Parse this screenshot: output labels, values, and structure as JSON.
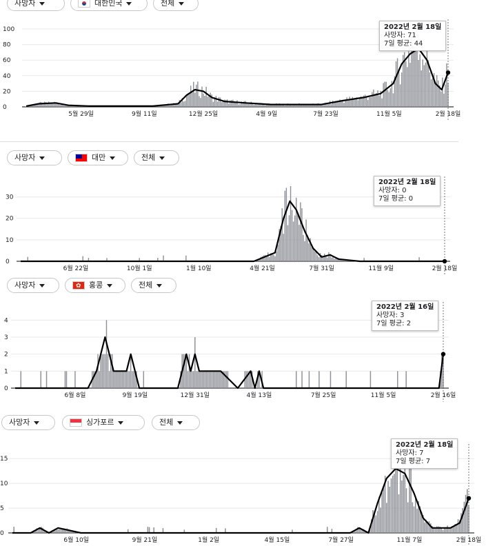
{
  "colors": {
    "bar": "#8e9097",
    "line": "#000000",
    "grid": "#e8e8e8",
    "marker": "#000000"
  },
  "panels": [
    {
      "controls": {
        "metric": "사망자",
        "country": "대한민국",
        "scope": "전체",
        "flag": "kr"
      },
      "tooltip": {
        "date": "2022년 2월 18일",
        "value_label": "사망자: 71",
        "avg_label": "7일 평균: 44"
      }
    },
    {
      "controls": {
        "metric": "사망자",
        "country": "대만",
        "scope": "전체",
        "flag": "tw"
      },
      "tooltip": {
        "date": "2022년 2월 18일",
        "value_label": "사망자: 0",
        "avg_label": "7일 평균: 0"
      }
    },
    {
      "controls": {
        "metric": "사망자",
        "country": "홍콩",
        "scope": "전체",
        "flag": "hk"
      },
      "tooltip": {
        "date": "2022년 2월 16일",
        "value_label": "사망자: 3",
        "avg_label": "7일 평균: 2"
      }
    },
    {
      "controls": {
        "metric": "사망자",
        "country": "싱가포르",
        "scope": "전체",
        "flag": "sg"
      },
      "tooltip": {
        "date": "2022년 2월 18일",
        "value_label": "사망자: 7",
        "avg_label": "7일 평균: 7"
      }
    }
  ],
  "chart_data": [
    {
      "type": "bar",
      "title": "",
      "ylim": [
        0,
        100
      ],
      "yticks": [
        0,
        20,
        40,
        60,
        80,
        100
      ],
      "xticks": [
        "5월 29일",
        "9월 11일",
        "12월 25일",
        "4월 9일",
        "7월 23일",
        "11월 5일",
        "2월 18일"
      ],
      "avg_x": [
        0,
        0.03,
        0.07,
        0.1,
        0.15,
        0.22,
        0.3,
        0.36,
        0.38,
        0.4,
        0.42,
        0.44,
        0.47,
        0.52,
        0.58,
        0.64,
        0.7,
        0.75,
        0.8,
        0.84,
        0.87,
        0.89,
        0.91,
        0.93,
        0.95,
        0.97,
        0.985,
        1.0
      ],
      "avg_y": [
        1,
        4,
        5,
        2,
        1,
        1,
        1,
        4,
        15,
        22,
        20,
        12,
        7,
        5,
        3,
        3,
        3,
        8,
        12,
        17,
        30,
        55,
        68,
        75,
        60,
        30,
        22,
        44
      ],
      "last": {
        "date": "2022년 2월 18일",
        "deaths": 71,
        "avg7": 44
      }
    },
    {
      "type": "bar",
      "title": "",
      "ylim": [
        0,
        35
      ],
      "yticks": [
        0,
        10,
        20,
        30
      ],
      "xticks": [
        "6월 22일",
        "10월 1일",
        "1월 10일",
        "4월 21일",
        "7월 31일",
        "11월 9일",
        "2월 18일"
      ],
      "avg_x": [
        0,
        0.1,
        0.2,
        0.3,
        0.4,
        0.55,
        0.6,
        0.62,
        0.635,
        0.65,
        0.67,
        0.69,
        0.71,
        0.73,
        0.75,
        0.8,
        1.0
      ],
      "avg_y": [
        0,
        0,
        0,
        0,
        0,
        0,
        4,
        20,
        28,
        24,
        14,
        6,
        2,
        3,
        1,
        0,
        0
      ],
      "last": {
        "date": "2022년 2월 18일",
        "deaths": 0,
        "avg7": 0
      }
    },
    {
      "type": "bar",
      "title": "",
      "ylim": [
        0,
        4.5
      ],
      "yticks": [
        0,
        1,
        2,
        3,
        4
      ],
      "xticks": [
        "6월 8일",
        "9월 19일",
        "12월 31일",
        "4월 13일",
        "7월 25일",
        "11월 5일",
        "2월 16일"
      ],
      "avg_x": [
        0,
        0.17,
        0.19,
        0.21,
        0.22,
        0.23,
        0.26,
        0.27,
        0.29,
        0.38,
        0.39,
        0.4,
        0.41,
        0.42,
        0.43,
        0.45,
        0.48,
        0.52,
        0.55,
        0.56,
        0.57,
        0.58,
        0.99,
        1.0
      ],
      "avg_y": [
        0,
        0,
        1,
        3,
        2,
        1,
        1,
        2,
        0,
        0,
        1,
        2,
        1,
        2,
        1,
        1,
        1,
        0,
        1,
        0,
        1,
        0,
        0,
        2
      ],
      "last": {
        "date": "2022년 2월 16일",
        "deaths": 3,
        "avg7": 2
      }
    },
    {
      "type": "bar",
      "title": "",
      "ylim": [
        0,
        16
      ],
      "yticks": [
        0,
        5,
        10,
        15
      ],
      "xticks": [
        "6월 10일",
        "9월 21일",
        "1월 2일",
        "4월 15일",
        "7월 27일",
        "11월 7일",
        "2월 18일"
      ],
      "avg_x": [
        0,
        0.04,
        0.06,
        0.08,
        0.1,
        0.15,
        0.3,
        0.5,
        0.74,
        0.76,
        0.78,
        0.8,
        0.82,
        0.84,
        0.86,
        0.88,
        0.9,
        0.92,
        0.94,
        0.96,
        0.98,
        1.0
      ],
      "avg_y": [
        0,
        0,
        1,
        0,
        1,
        0,
        0,
        0,
        0,
        1,
        0,
        6,
        11,
        13,
        12,
        8,
        3,
        1,
        1,
        1,
        2,
        7
      ],
      "last": {
        "date": "2022년 2월 18일",
        "deaths": 7,
        "avg7": 7
      }
    }
  ]
}
